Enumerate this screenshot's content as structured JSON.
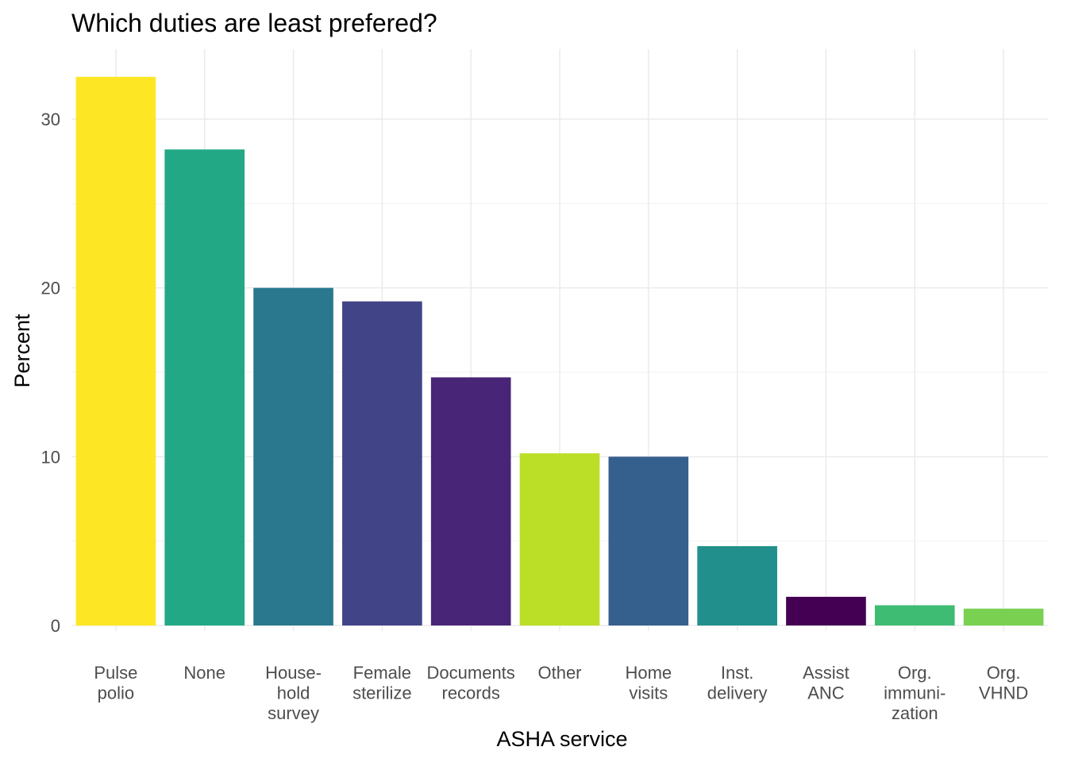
{
  "chart_data": {
    "type": "bar",
    "title": "Which duties are least prefered?",
    "xlabel": "ASHA service",
    "ylabel": "Percent",
    "categories": [
      [
        "Pulse",
        "polio"
      ],
      [
        "None"
      ],
      [
        "House-",
        "hold",
        "survey"
      ],
      [
        "Female",
        "sterilize"
      ],
      [
        "Documents",
        "records"
      ],
      [
        "Other"
      ],
      [
        "Home",
        "visits"
      ],
      [
        "Inst.",
        "delivery"
      ],
      [
        "Assist",
        "ANC"
      ],
      [
        "Org.",
        "immuni-",
        "zation"
      ],
      [
        "Org.",
        "VHND"
      ]
    ],
    "values": [
      32.5,
      28.2,
      20.0,
      19.2,
      14.7,
      10.2,
      10.0,
      4.7,
      1.7,
      1.2,
      1.0
    ],
    "colors": [
      "#FDE725",
      "#22A884",
      "#2A788E",
      "#414487",
      "#482576",
      "#BBDF27",
      "#355F8D",
      "#21908C",
      "#440154",
      "#3FBC73",
      "#7AD151"
    ],
    "ylim": [
      0,
      33.5
    ],
    "yticks": [
      0,
      10,
      20,
      30
    ],
    "grid": true,
    "legend": "none"
  }
}
